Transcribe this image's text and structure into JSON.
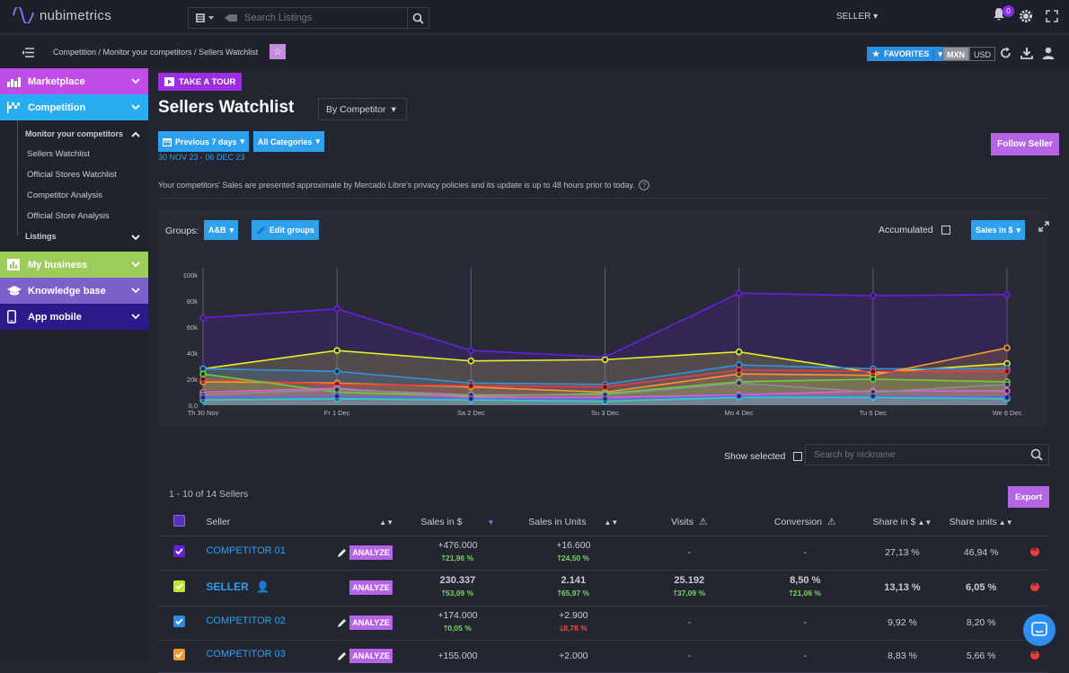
{
  "app": {
    "name": "nubimetrics"
  },
  "top": {
    "search_placeholder": "Search Listings",
    "user_menu": "SELLER",
    "notifications": "0"
  },
  "sub": {
    "breadcrumb": "Competition / Monitor your competitors / Sellers Watchlist",
    "favorites": "FAVORITES",
    "currency_active": "MXN",
    "currency_other": "USD"
  },
  "sidebar": {
    "items": [
      {
        "label": "Marketplace",
        "color": "#c14de8"
      },
      {
        "label": "Competition",
        "color": "#27aef0"
      },
      {
        "label": "My business",
        "color": "#9ccc5a"
      },
      {
        "label": "Knowledge base",
        "color": "#7b61c9"
      },
      {
        "label": "App mobile",
        "color": "#2a1a8a"
      }
    ],
    "group_label": "Monitor your competitors",
    "sub_items": [
      "Sellers Watchlist",
      "Official Stores Watchlist",
      "Competitor Analysis",
      "Official Store Analysis"
    ],
    "listings": "Listings"
  },
  "main": {
    "tour": "TAKE A TOUR",
    "title": "Sellers Watchlist",
    "by": "By Competitor",
    "period": "Previous 7 days",
    "categories": "All Categories",
    "range": "30 NOV 23 - 06 DEC 23",
    "follow": "Follow Seller",
    "notice": "Your competitors' Sales are presented approximate by Mercado Libre's privacy policies and its update is up to 48 hours prior to today."
  },
  "chart_controls": {
    "groups_label": "Groups:",
    "group_value": "A&B",
    "edit_groups": "Edit groups",
    "accumulated": "Accumulated",
    "metric": "Sales in $"
  },
  "chart_data": {
    "type": "line",
    "x": [
      "Th 30 Nov",
      "Fr 1 Dec",
      "Sa 2 Dec",
      "Su 3 Dec",
      "Mo 4 Dec",
      "Tu 5 Dec",
      "We 6 Dec"
    ],
    "y_ticks": [
      "0,0",
      "20k",
      "40k",
      "60k",
      "80k",
      "100k"
    ],
    "ylim": [
      0,
      100000
    ],
    "series": [
      {
        "color": "#6b1ee0",
        "values": [
          67000,
          74000,
          42000,
          37000,
          86000,
          84000,
          85000
        ]
      },
      {
        "color": "#e2ef2a",
        "values": [
          28000,
          42000,
          34000,
          35000,
          41000,
          25000,
          32000
        ]
      },
      {
        "color": "#3a8fd9",
        "values": [
          28000,
          26000,
          17000,
          16000,
          31000,
          28000,
          28000
        ]
      },
      {
        "color": "#f39a2c",
        "values": [
          18000,
          17000,
          14000,
          10000,
          24000,
          23000,
          44000
        ]
      },
      {
        "color": "#ef3a3a",
        "values": [
          20000,
          16000,
          15000,
          14000,
          27000,
          26000,
          26000
        ]
      },
      {
        "color": "#63d337",
        "values": [
          24000,
          10000,
          7000,
          9000,
          18000,
          20000,
          18000
        ]
      },
      {
        "color": "#e35fd0",
        "values": [
          10000,
          13000,
          6000,
          6000,
          8000,
          11000,
          11000
        ]
      },
      {
        "color": "#8c8f96",
        "values": [
          8000,
          12000,
          8000,
          8000,
          17000,
          10000,
          16000
        ]
      },
      {
        "color": "#25d6c5",
        "values": [
          4000,
          5000,
          4000,
          3000,
          6000,
          6000,
          5000
        ]
      },
      {
        "color": "#5c6bf0",
        "values": [
          6000,
          7000,
          5000,
          5000,
          7000,
          7000,
          6000
        ]
      }
    ]
  },
  "table": {
    "show_selected": "Show selected",
    "search_placeholder": "Search by nickname",
    "count": "1 - 10 of 14 Sellers",
    "export": "Export",
    "headers": [
      "Seller",
      "Sales in $",
      "Sales in Units",
      "Visits",
      "Conversion",
      "Share in $",
      "Share units"
    ],
    "analyze": "ANALYZE",
    "rows": [
      {
        "color": "#6b1ee0",
        "seller": "COMPETITOR 01",
        "sales": "+476.000",
        "sales_delta": "21,96 %",
        "sales_dir": "up",
        "units": "+16.600",
        "units_delta": "24,50 %",
        "units_dir": "up",
        "visits": "-",
        "visits_delta": "",
        "conv": "-",
        "conv_delta": "",
        "share": "27,13 %",
        "share_units": "46,94 %",
        "bold": false
      },
      {
        "color": "#c4e82a",
        "seller": "SELLER",
        "sales": "230.337",
        "sales_delta": "53,09 %",
        "sales_dir": "up",
        "units": "2.141",
        "units_delta": "65,97 %",
        "units_dir": "up",
        "visits": "25.192",
        "visits_delta": "37,09 %",
        "conv": "8,50 %",
        "conv_delta": "21,06 %",
        "share": "13,13 %",
        "share_units": "6,05 %",
        "bold": true
      },
      {
        "color": "#2b8de0",
        "seller": "COMPETITOR 02",
        "sales": "+174.000",
        "sales_delta": "0,05 %",
        "sales_dir": "up",
        "units": "+2.900",
        "units_delta": "8,78 %",
        "units_dir": "down",
        "visits": "-",
        "visits_delta": "",
        "conv": "-",
        "conv_delta": "",
        "share": "9,92 %",
        "share_units": "8,20 %",
        "bold": false
      },
      {
        "color": "#f39a2c",
        "seller": "COMPETITOR 03",
        "sales": "+155.000",
        "sales_delta": "",
        "sales_dir": "up",
        "units": "+2.000",
        "units_delta": "",
        "units_dir": "up",
        "visits": "-",
        "visits_delta": "",
        "conv": "-",
        "conv_delta": "",
        "share": "8,83 %",
        "share_units": "5,66 %",
        "bold": false
      }
    ]
  }
}
